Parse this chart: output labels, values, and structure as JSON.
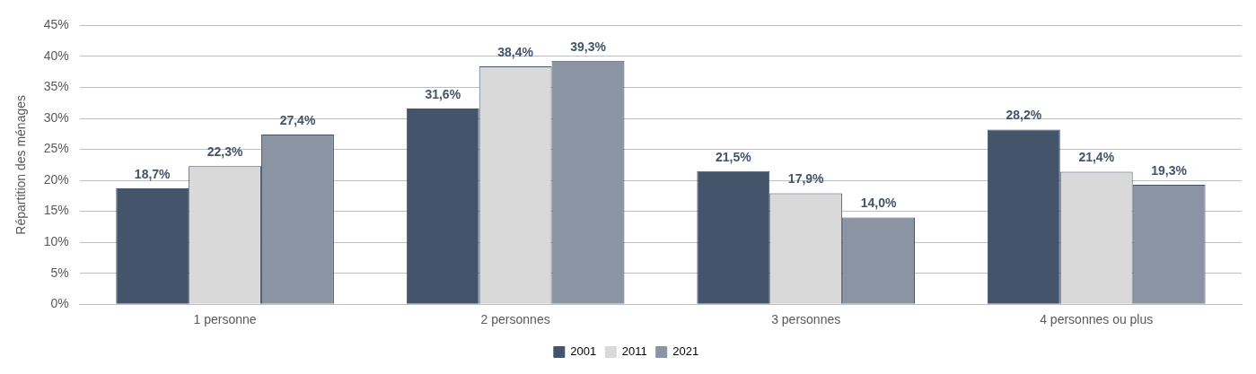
{
  "chart_data": {
    "type": "bar",
    "ylabel": "Répartition des ménages",
    "categories": [
      "1 personne",
      "2 personnes",
      "3 personnes",
      "4 personnes ou plus"
    ],
    "series": [
      {
        "name": "2001",
        "color": "#44546a",
        "values": [
          18.7,
          31.6,
          21.5,
          28.2
        ],
        "value_labels": [
          "18,7%",
          "31,6%",
          "21,5%",
          "28,2%"
        ]
      },
      {
        "name": "2011",
        "color": "#d9d9d9",
        "values": [
          22.3,
          38.4,
          17.9,
          21.4
        ],
        "value_labels": [
          "22,3%",
          "38,4%",
          "17,9%",
          "21,4%"
        ]
      },
      {
        "name": "2021",
        "color": "#8a94a3",
        "values": [
          27.4,
          39.3,
          14.0,
          19.3
        ],
        "value_labels": [
          "27,4%",
          "39,3%",
          "14,0%",
          "19,3%"
        ]
      }
    ],
    "ylim": [
      0,
      45
    ],
    "yticks": [
      {
        "value": 0,
        "label": "0%"
      },
      {
        "value": 5,
        "label": "5%"
      },
      {
        "value": 10,
        "label": "10%"
      },
      {
        "value": 15,
        "label": "15%"
      },
      {
        "value": 20,
        "label": "20%"
      },
      {
        "value": 25,
        "label": "25%"
      },
      {
        "value": 30,
        "label": "30%"
      },
      {
        "value": 35,
        "label": "35%"
      },
      {
        "value": 40,
        "label": "40%"
      },
      {
        "value": 45,
        "label": "45%"
      }
    ],
    "grid": "y",
    "legend": "bottom"
  }
}
